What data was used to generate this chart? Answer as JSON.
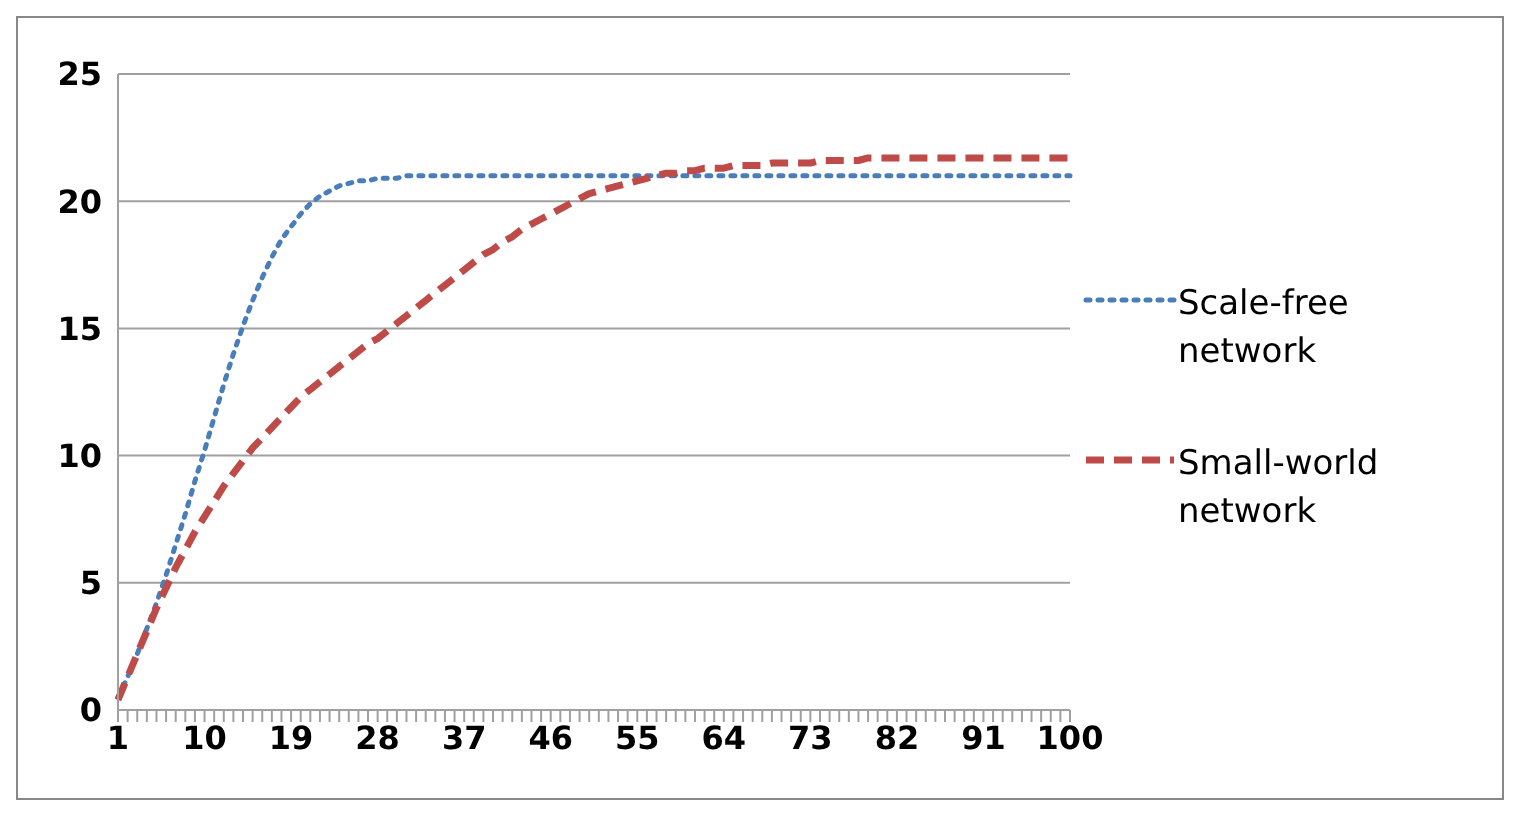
{
  "chart_data": {
    "type": "line",
    "categories": [
      "1",
      null,
      null,
      null,
      null,
      null,
      null,
      null,
      null,
      "10",
      null,
      null,
      null,
      null,
      null,
      null,
      null,
      null,
      "19",
      null,
      null,
      null,
      null,
      null,
      null,
      null,
      null,
      "28",
      null,
      null,
      null,
      null,
      null,
      null,
      null,
      null,
      "37",
      null,
      null,
      null,
      null,
      null,
      null,
      null,
      null,
      "46",
      null,
      null,
      null,
      null,
      null,
      null,
      null,
      null,
      "55",
      null,
      null,
      null,
      null,
      null,
      null,
      null,
      null,
      "64",
      null,
      null,
      null,
      null,
      null,
      null,
      null,
      null,
      "73",
      null,
      null,
      null,
      null,
      null,
      null,
      null,
      null,
      "82",
      null,
      null,
      null,
      null,
      null,
      null,
      null,
      null,
      "91",
      null,
      null,
      null,
      null,
      null,
      null,
      null,
      null,
      "100"
    ],
    "series": [
      {
        "name": "Scale-free network",
        "color": "#4a7ebb",
        "line_style": "dotted",
        "values": [
          0.5,
          1.3,
          2.2,
          3.2,
          4.2,
          5.3,
          6.5,
          7.7,
          9,
          10.2,
          11.5,
          12.8,
          14,
          15.1,
          16.1,
          17,
          17.8,
          18.5,
          19,
          19.5,
          19.9,
          20.2,
          20.4,
          20.6,
          20.7,
          20.8,
          20.8,
          20.9,
          20.9,
          20.9,
          21,
          21,
          21,
          21,
          21,
          21,
          21,
          21,
          21,
          21,
          21,
          21,
          21,
          21,
          21,
          21,
          21,
          21,
          21,
          21,
          21,
          21,
          21,
          21,
          21,
          21,
          21,
          21,
          21,
          21,
          21,
          21,
          21,
          21,
          21,
          21,
          21,
          21,
          21,
          21,
          21,
          21,
          21,
          21,
          21,
          21,
          21,
          21,
          21,
          21,
          21,
          21,
          21,
          21,
          21,
          21,
          21,
          21,
          21,
          21,
          21,
          21,
          21,
          21,
          21,
          21,
          21,
          21,
          21,
          21
        ]
      },
      {
        "name": "Small-world network",
        "color": "#be4b48",
        "line_style": "dashed",
        "values": [
          0.4,
          1.3,
          2.2,
          3.1,
          4,
          4.8,
          5.6,
          6.3,
          7,
          7.6,
          8.2,
          8.8,
          9.3,
          9.8,
          10.3,
          10.7,
          11.1,
          11.5,
          11.9,
          12.3,
          12.6,
          12.9,
          13.2,
          13.5,
          13.8,
          14.1,
          14.4,
          14.6,
          14.9,
          15.2,
          15.5,
          15.8,
          16.1,
          16.4,
          16.7,
          17,
          17.3,
          17.6,
          17.9,
          18.1,
          18.4,
          18.6,
          18.9,
          19.1,
          19.3,
          19.5,
          19.7,
          19.9,
          20.1,
          20.3,
          20.4,
          20.5,
          20.6,
          20.7,
          20.8,
          20.9,
          21,
          21.1,
          21.1,
          21.2,
          21.2,
          21.3,
          21.3,
          21.3,
          21.4,
          21.4,
          21.4,
          21.4,
          21.5,
          21.5,
          21.5,
          21.5,
          21.5,
          21.6,
          21.6,
          21.6,
          21.6,
          21.6,
          21.7,
          21.7,
          21.7,
          21.7,
          21.7,
          21.7,
          21.7,
          21.7,
          21.7,
          21.7,
          21.7,
          21.7,
          21.7,
          21.7,
          21.7,
          21.7,
          21.7,
          21.7,
          21.7,
          21.7,
          21.7,
          21.7
        ]
      }
    ],
    "ylim": [
      0,
      25
    ],
    "yticks": [
      0,
      5,
      10,
      15,
      20,
      25
    ],
    "grid": "y",
    "legend": "right",
    "marker": "none"
  }
}
